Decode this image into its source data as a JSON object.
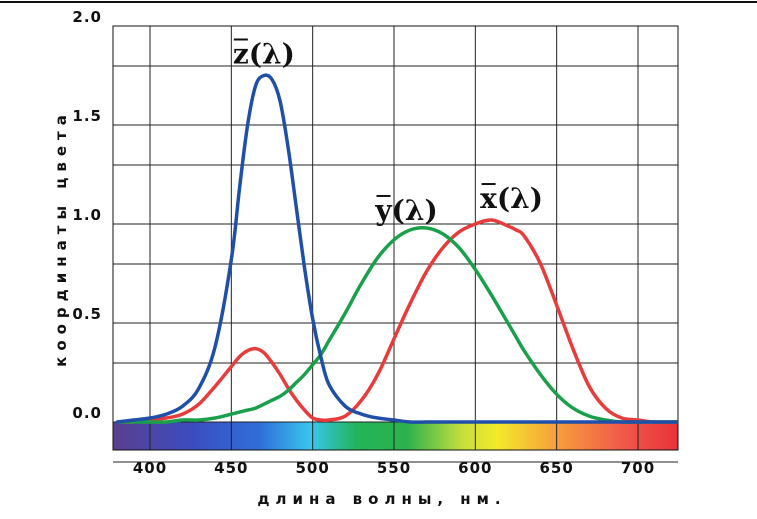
{
  "chart_data": {
    "type": "line",
    "title": "",
    "xlabel": "длина волны, нм.",
    "ylabel": "координаты цвета",
    "xlim": [
      380,
      725
    ],
    "ylim": [
      -0.05,
      2.0
    ],
    "x_ticks": [
      "400",
      "450",
      "500",
      "550",
      "600",
      "650",
      "700"
    ],
    "y_ticks": [
      "0.0",
      "0.5",
      "1.0",
      "1.5",
      "2.0"
    ],
    "grid": true,
    "spectrum_bar": true,
    "x": [
      380,
      390,
      400,
      410,
      420,
      430,
      440,
      450,
      455,
      460,
      465,
      470,
      475,
      480,
      485,
      490,
      495,
      500,
      505,
      510,
      520,
      530,
      540,
      550,
      560,
      570,
      580,
      590,
      600,
      610,
      620,
      625,
      630,
      640,
      650,
      660,
      670,
      680,
      690,
      700,
      710,
      725
    ],
    "series": [
      {
        "name": "z(λ)",
        "color": "#1f4fa8",
        "values": [
          0.0,
          0.01,
          0.02,
          0.04,
          0.08,
          0.17,
          0.38,
          0.82,
          1.18,
          1.5,
          1.7,
          1.75,
          1.73,
          1.62,
          1.38,
          1.08,
          0.78,
          0.52,
          0.33,
          0.19,
          0.08,
          0.04,
          0.02,
          0.01,
          0.0,
          0.0,
          0.0,
          0.0,
          0.0,
          0.0,
          0.0,
          0.0,
          0.0,
          0.0,
          0.0,
          0.0,
          0.0,
          0.0,
          0.0,
          0.0,
          0.0,
          0.0
        ]
      },
      {
        "name": "y(λ)",
        "color": "#1aa04a",
        "values": [
          0.0,
          0.0,
          0.0,
          0.0,
          0.01,
          0.01,
          0.02,
          0.04,
          0.05,
          0.06,
          0.07,
          0.09,
          0.11,
          0.13,
          0.16,
          0.2,
          0.24,
          0.29,
          0.34,
          0.41,
          0.55,
          0.7,
          0.83,
          0.92,
          0.97,
          0.98,
          0.95,
          0.88,
          0.77,
          0.64,
          0.5,
          0.43,
          0.36,
          0.24,
          0.14,
          0.07,
          0.03,
          0.01,
          0.0,
          0.0,
          0.0,
          0.0
        ]
      },
      {
        "name": "x(λ)",
        "color": "#e83c3c",
        "values": [
          0.0,
          0.0,
          0.01,
          0.02,
          0.04,
          0.09,
          0.18,
          0.28,
          0.33,
          0.36,
          0.37,
          0.35,
          0.3,
          0.24,
          0.17,
          0.11,
          0.06,
          0.02,
          0.01,
          0.01,
          0.03,
          0.11,
          0.24,
          0.42,
          0.6,
          0.76,
          0.88,
          0.96,
          1.0,
          1.02,
          0.99,
          0.97,
          0.94,
          0.8,
          0.59,
          0.37,
          0.18,
          0.07,
          0.02,
          0.01,
          0.0,
          0.0
        ]
      }
    ]
  }
}
